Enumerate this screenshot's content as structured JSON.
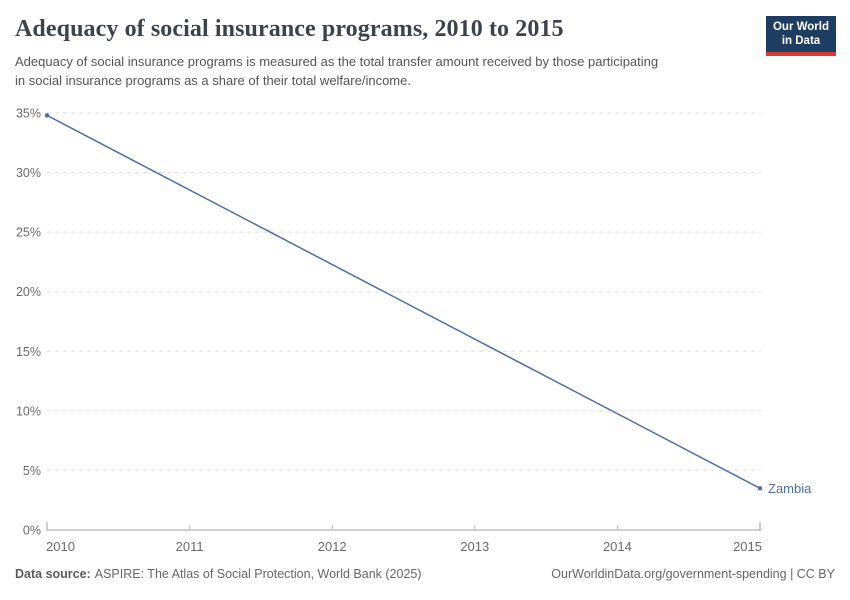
{
  "header": {
    "title": "Adequacy of social insurance programs, 2010 to 2015",
    "subtitle": "Adequacy of social insurance programs is measured as the total transfer amount received by those participating in social insurance programs as a share of their total welfare/income.",
    "logo": {
      "line1": "Our World",
      "line2": "in Data"
    }
  },
  "chart_data": {
    "type": "line",
    "title": "Adequacy of social insurance programs, 2010 to 2015",
    "xlabel": "",
    "ylabel": "",
    "xlim": [
      2010,
      2015
    ],
    "ylim": [
      0,
      35
    ],
    "x_ticks": [
      2010,
      2011,
      2012,
      2013,
      2014,
      2015
    ],
    "y_ticks": [
      0,
      5,
      10,
      15,
      20,
      25,
      30,
      35
    ],
    "y_suffix": "%",
    "grid": "horizontal-dashed",
    "legend": "end-of-line-label",
    "series": [
      {
        "name": "Zambia",
        "x": [
          2010,
          2015
        ],
        "values": [
          34.8,
          3.5
        ],
        "color": "#4e6fa8"
      }
    ]
  },
  "footer": {
    "source_label": "Data source:",
    "source_text": "ASPIRE: The Atlas of Social Protection, World Bank (2025)",
    "link_text": "OurWorldinData.org/government-spending | CC BY"
  },
  "colors": {
    "series_blue": "#4e6fa8",
    "logo_navy": "#1d3d63",
    "logo_red": "#d93a34",
    "grid": "#dddddd",
    "axis": "#a0a0a0",
    "tick": "#bcbcbc",
    "tick_label": "#6b6b6b",
    "title_text": "#3d434c",
    "subtitle_text": "#555555",
    "footer_text": "#666666"
  }
}
